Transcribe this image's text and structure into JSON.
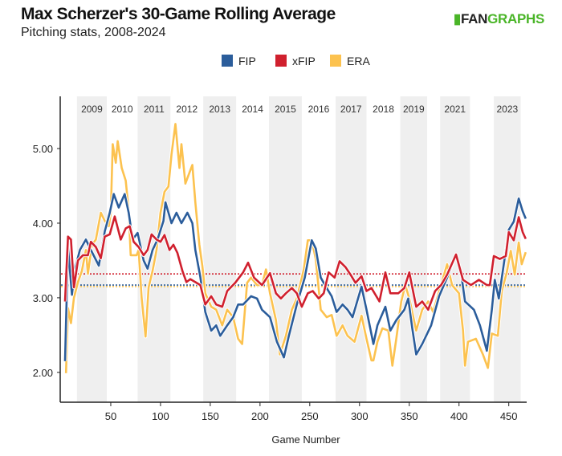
{
  "header": {
    "title": "Max Scherzer's 30-Game Rolling Average",
    "subtitle": "Pitching stats, 2008-2024",
    "logo_fan": "FAN",
    "logo_graphs": "GRAPHS"
  },
  "chart_data": {
    "type": "line",
    "xlabel": "Game Number",
    "ylabel": "",
    "xlim": [
      0,
      468
    ],
    "ylim": [
      1.6,
      5.7
    ],
    "xticks": [
      50,
      100,
      150,
      200,
      250,
      300,
      350,
      400,
      450
    ],
    "yticks": [
      2.0,
      3.0,
      4.0,
      5.0
    ],
    "ytick_labels": [
      "2.00",
      "3.00",
      "4.00",
      "5.00"
    ],
    "legend_position": "top-center",
    "seasons": [
      {
        "label": "2009",
        "start": 16,
        "end": 46,
        "shaded": true
      },
      {
        "label": "2010",
        "start": 46,
        "end": 77,
        "shaded": false
      },
      {
        "label": "2011",
        "start": 77,
        "end": 110,
        "shaded": true
      },
      {
        "label": "2012",
        "start": 110,
        "end": 143,
        "shaded": false
      },
      {
        "label": "2013",
        "start": 143,
        "end": 176,
        "shaded": true
      },
      {
        "label": "2014",
        "start": 176,
        "end": 209,
        "shaded": false
      },
      {
        "label": "2015",
        "start": 209,
        "end": 242,
        "shaded": true
      },
      {
        "label": "2016",
        "start": 242,
        "end": 276,
        "shaded": false
      },
      {
        "label": "2017",
        "start": 276,
        "end": 307,
        "shaded": true
      },
      {
        "label": "2018",
        "start": 307,
        "end": 341,
        "shaded": false
      },
      {
        "label": "2019",
        "start": 341,
        "end": 368,
        "shaded": true
      },
      {
        "label": "2021",
        "start": 381,
        "end": 411,
        "shaded": true
      },
      {
        "label": "2023",
        "start": 435,
        "end": 462,
        "shaded": true
      }
    ],
    "series": [
      {
        "name": "ERA",
        "color": "#fcc24f",
        "career_avg": 3.15,
        "points": [
          [
            5,
            1.99
          ],
          [
            7,
            2.86
          ],
          [
            10,
            2.66
          ],
          [
            13,
            3.0
          ],
          [
            17,
            3.21
          ],
          [
            21,
            3.36
          ],
          [
            25,
            3.64
          ],
          [
            27,
            3.32
          ],
          [
            31,
            3.71
          ],
          [
            35,
            3.78
          ],
          [
            40,
            4.14
          ],
          [
            44,
            4.03
          ],
          [
            48,
            3.96
          ],
          [
            50,
            4.14
          ],
          [
            52,
            5.06
          ],
          [
            55,
            4.81
          ],
          [
            57,
            5.1
          ],
          [
            61,
            4.74
          ],
          [
            65,
            4.57
          ],
          [
            68,
            4.17
          ],
          [
            70,
            3.57
          ],
          [
            76,
            3.57
          ],
          [
            78,
            3.64
          ],
          [
            81,
            3.0
          ],
          [
            85,
            2.48
          ],
          [
            88,
            3.14
          ],
          [
            92,
            3.36
          ],
          [
            96,
            3.64
          ],
          [
            100,
            4.14
          ],
          [
            104,
            4.42
          ],
          [
            108,
            4.49
          ],
          [
            111,
            4.92
          ],
          [
            115,
            5.33
          ],
          [
            119,
            4.74
          ],
          [
            121,
            5.06
          ],
          [
            125,
            4.53
          ],
          [
            130,
            4.71
          ],
          [
            132,
            4.78
          ],
          [
            135,
            4.28
          ],
          [
            139,
            3.71
          ],
          [
            142,
            3.43
          ],
          [
            145,
            3.06
          ],
          [
            151,
            2.88
          ],
          [
            156,
            2.84
          ],
          [
            162,
            2.63
          ],
          [
            167,
            2.84
          ],
          [
            173,
            2.74
          ],
          [
            178,
            2.45
          ],
          [
            182,
            2.38
          ],
          [
            187,
            3.2
          ],
          [
            191,
            3.27
          ],
          [
            197,
            3.17
          ],
          [
            202,
            3.17
          ],
          [
            206,
            3.38
          ],
          [
            210,
            3.06
          ],
          [
            216,
            2.7
          ],
          [
            220,
            2.24
          ],
          [
            226,
            2.49
          ],
          [
            232,
            2.84
          ],
          [
            237,
            2.99
          ],
          [
            244,
            3.38
          ],
          [
            248,
            3.77
          ],
          [
            252,
            3.77
          ],
          [
            256,
            3.52
          ],
          [
            261,
            2.84
          ],
          [
            267,
            2.74
          ],
          [
            272,
            2.77
          ],
          [
            277,
            2.49
          ],
          [
            283,
            2.63
          ],
          [
            288,
            2.49
          ],
          [
            295,
            2.41
          ],
          [
            302,
            2.76
          ],
          [
            307,
            2.45
          ],
          [
            312,
            2.16
          ],
          [
            314,
            2.16
          ],
          [
            318,
            2.41
          ],
          [
            323,
            2.59
          ],
          [
            329,
            2.56
          ],
          [
            333,
            2.09
          ],
          [
            337,
            2.45
          ],
          [
            342,
            2.95
          ],
          [
            346,
            3.17
          ],
          [
            350,
            2.99
          ],
          [
            357,
            2.56
          ],
          [
            363,
            2.84
          ],
          [
            369,
            2.95
          ],
          [
            374,
            2.81
          ],
          [
            381,
            3.13
          ],
          [
            388,
            3.45
          ],
          [
            393,
            3.17
          ],
          [
            400,
            3.06
          ],
          [
            404,
            2.56
          ],
          [
            406,
            2.09
          ],
          [
            409,
            2.41
          ],
          [
            417,
            2.45
          ],
          [
            424,
            2.24
          ],
          [
            429,
            2.06
          ],
          [
            433,
            2.52
          ],
          [
            439,
            2.49
          ],
          [
            443,
            3.09
          ],
          [
            448,
            3.34
          ],
          [
            452,
            3.63
          ],
          [
            456,
            3.31
          ],
          [
            460,
            3.74
          ],
          [
            463,
            3.45
          ],
          [
            467,
            3.61
          ]
        ]
      },
      {
        "name": "FIP",
        "color": "#2b5d9b",
        "career_avg": 3.17,
        "points": [
          [
            4,
            2.15
          ],
          [
            7,
            3.68
          ],
          [
            11,
            3.04
          ],
          [
            14,
            3.39
          ],
          [
            19,
            3.64
          ],
          [
            25,
            3.78
          ],
          [
            30,
            3.64
          ],
          [
            38,
            3.43
          ],
          [
            44,
            3.89
          ],
          [
            49,
            4.14
          ],
          [
            53,
            4.39
          ],
          [
            58,
            4.21
          ],
          [
            64,
            4.39
          ],
          [
            68,
            4.14
          ],
          [
            72,
            3.78
          ],
          [
            77,
            3.87
          ],
          [
            83,
            3.5
          ],
          [
            87,
            3.39
          ],
          [
            92,
            3.64
          ],
          [
            97,
            3.78
          ],
          [
            103,
            4.03
          ],
          [
            105,
            4.28
          ],
          [
            111,
            4.0
          ],
          [
            116,
            4.14
          ],
          [
            121,
            4.0
          ],
          [
            127,
            4.14
          ],
          [
            132,
            4.0
          ],
          [
            135,
            3.64
          ],
          [
            140,
            3.28
          ],
          [
            145,
            2.81
          ],
          [
            151,
            2.56
          ],
          [
            156,
            2.63
          ],
          [
            160,
            2.49
          ],
          [
            167,
            2.63
          ],
          [
            173,
            2.74
          ],
          [
            178,
            2.91
          ],
          [
            183,
            2.91
          ],
          [
            191,
            3.02
          ],
          [
            197,
            2.99
          ],
          [
            202,
            2.84
          ],
          [
            210,
            2.74
          ],
          [
            217,
            2.41
          ],
          [
            224,
            2.2
          ],
          [
            229,
            2.49
          ],
          [
            237,
            2.91
          ],
          [
            245,
            3.27
          ],
          [
            252,
            3.77
          ],
          [
            256,
            3.66
          ],
          [
            261,
            3.27
          ],
          [
            267,
            3.13
          ],
          [
            272,
            3.02
          ],
          [
            277,
            2.81
          ],
          [
            283,
            2.91
          ],
          [
            288,
            2.84
          ],
          [
            293,
            2.74
          ],
          [
            302,
            3.15
          ],
          [
            307,
            2.84
          ],
          [
            314,
            2.38
          ],
          [
            318,
            2.63
          ],
          [
            326,
            2.88
          ],
          [
            331,
            2.56
          ],
          [
            337,
            2.7
          ],
          [
            345,
            2.84
          ],
          [
            349,
            2.99
          ],
          [
            353,
            2.59
          ],
          [
            357,
            2.24
          ],
          [
            363,
            2.38
          ],
          [
            372,
            2.63
          ],
          [
            380,
            3.02
          ],
          [
            388,
            3.27
          ],
          [
            397,
            3.58
          ],
          [
            402,
            3.34
          ],
          [
            406,
            2.95
          ],
          [
            415,
            2.84
          ],
          [
            421,
            2.63
          ],
          [
            428,
            2.29
          ],
          [
            433,
            2.84
          ],
          [
            436,
            3.24
          ],
          [
            440,
            2.99
          ],
          [
            445,
            3.45
          ],
          [
            450,
            3.91
          ],
          [
            455,
            4.02
          ],
          [
            460,
            4.33
          ],
          [
            464,
            4.16
          ],
          [
            467,
            4.06
          ]
        ]
      },
      {
        "name": "xFIP",
        "color": "#d0202e",
        "career_avg": 3.32,
        "points": [
          [
            4,
            2.95
          ],
          [
            7,
            3.82
          ],
          [
            10,
            3.78
          ],
          [
            13,
            3.14
          ],
          [
            17,
            3.5
          ],
          [
            22,
            3.57
          ],
          [
            27,
            3.57
          ],
          [
            30,
            3.75
          ],
          [
            35,
            3.68
          ],
          [
            40,
            3.53
          ],
          [
            44,
            3.82
          ],
          [
            49,
            3.85
          ],
          [
            54,
            4.09
          ],
          [
            60,
            3.78
          ],
          [
            65,
            3.93
          ],
          [
            69,
            3.96
          ],
          [
            73,
            3.75
          ],
          [
            78,
            3.68
          ],
          [
            83,
            3.57
          ],
          [
            87,
            3.64
          ],
          [
            91,
            3.85
          ],
          [
            96,
            3.78
          ],
          [
            100,
            3.75
          ],
          [
            104,
            3.84
          ],
          [
            109,
            3.64
          ],
          [
            113,
            3.71
          ],
          [
            117,
            3.6
          ],
          [
            122,
            3.36
          ],
          [
            126,
            3.21
          ],
          [
            130,
            3.25
          ],
          [
            135,
            3.21
          ],
          [
            140,
            3.17
          ],
          [
            145,
            2.91
          ],
          [
            151,
            3.02
          ],
          [
            156,
            2.91
          ],
          [
            162,
            2.88
          ],
          [
            167,
            3.09
          ],
          [
            175,
            3.2
          ],
          [
            183,
            3.34
          ],
          [
            188,
            3.47
          ],
          [
            194,
            3.27
          ],
          [
            202,
            3.17
          ],
          [
            210,
            3.33
          ],
          [
            216,
            3.06
          ],
          [
            221,
            2.99
          ],
          [
            226,
            3.06
          ],
          [
            232,
            3.13
          ],
          [
            237,
            3.06
          ],
          [
            242,
            2.88
          ],
          [
            248,
            3.06
          ],
          [
            253,
            3.09
          ],
          [
            259,
            2.99
          ],
          [
            264,
            3.06
          ],
          [
            269,
            3.34
          ],
          [
            275,
            3.27
          ],
          [
            280,
            3.49
          ],
          [
            286,
            3.41
          ],
          [
            291,
            3.31
          ],
          [
            296,
            3.2
          ],
          [
            302,
            3.29
          ],
          [
            307,
            3.09
          ],
          [
            312,
            3.13
          ],
          [
            320,
            2.95
          ],
          [
            326,
            3.34
          ],
          [
            331,
            3.06
          ],
          [
            339,
            3.06
          ],
          [
            345,
            3.13
          ],
          [
            350,
            3.34
          ],
          [
            357,
            2.88
          ],
          [
            363,
            2.95
          ],
          [
            369,
            2.84
          ],
          [
            376,
            3.09
          ],
          [
            382,
            3.17
          ],
          [
            388,
            3.31
          ],
          [
            397,
            3.58
          ],
          [
            404,
            3.24
          ],
          [
            412,
            3.17
          ],
          [
            420,
            3.24
          ],
          [
            428,
            3.17
          ],
          [
            431,
            3.17
          ],
          [
            435,
            3.56
          ],
          [
            441,
            3.52
          ],
          [
            447,
            3.56
          ],
          [
            450,
            3.88
          ],
          [
            455,
            3.77
          ],
          [
            460,
            4.08
          ],
          [
            464,
            3.88
          ],
          [
            467,
            3.79
          ]
        ]
      }
    ]
  }
}
